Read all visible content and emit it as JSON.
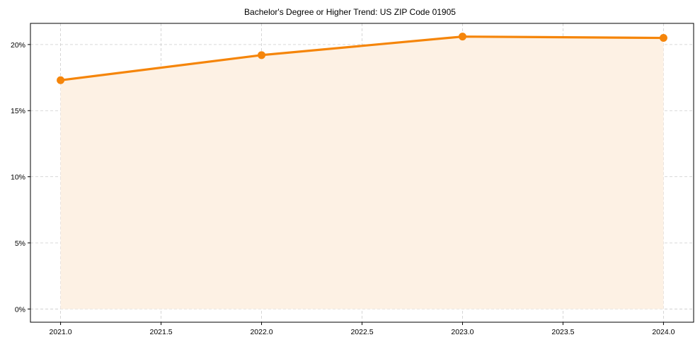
{
  "chart_data": {
    "type": "line",
    "title": "Bachelor's Degree or Higher Trend: US ZIP Code 01905",
    "xlabel": "",
    "ylabel": "",
    "x": [
      2021,
      2022,
      2023,
      2024
    ],
    "series": [
      {
        "name": "Bachelor's Degree or Higher",
        "values": [
          17.3,
          19.2,
          20.6,
          20.5
        ],
        "unit": "%",
        "color": "#F5850A",
        "fill_color": "#FDF1E4",
        "marker": "circle",
        "filled_area": true
      }
    ],
    "xlim": [
      2020.85,
      2024.15
    ],
    "ylim": [
      -1.0,
      21.6
    ],
    "x_ticks": [
      2021.0,
      2021.5,
      2022.0,
      2022.5,
      2023.0,
      2023.5,
      2024.0
    ],
    "x_tick_labels": [
      "2021.0",
      "2021.5",
      "2022.0",
      "2022.5",
      "2023.0",
      "2023.5",
      "2024.0"
    ],
    "y_ticks": [
      0,
      5,
      10,
      15,
      20
    ],
    "y_tick_labels": [
      "0%",
      "5%",
      "10%",
      "15%",
      "20%"
    ],
    "grid": true,
    "grid_style": "dashed",
    "legend": null
  }
}
